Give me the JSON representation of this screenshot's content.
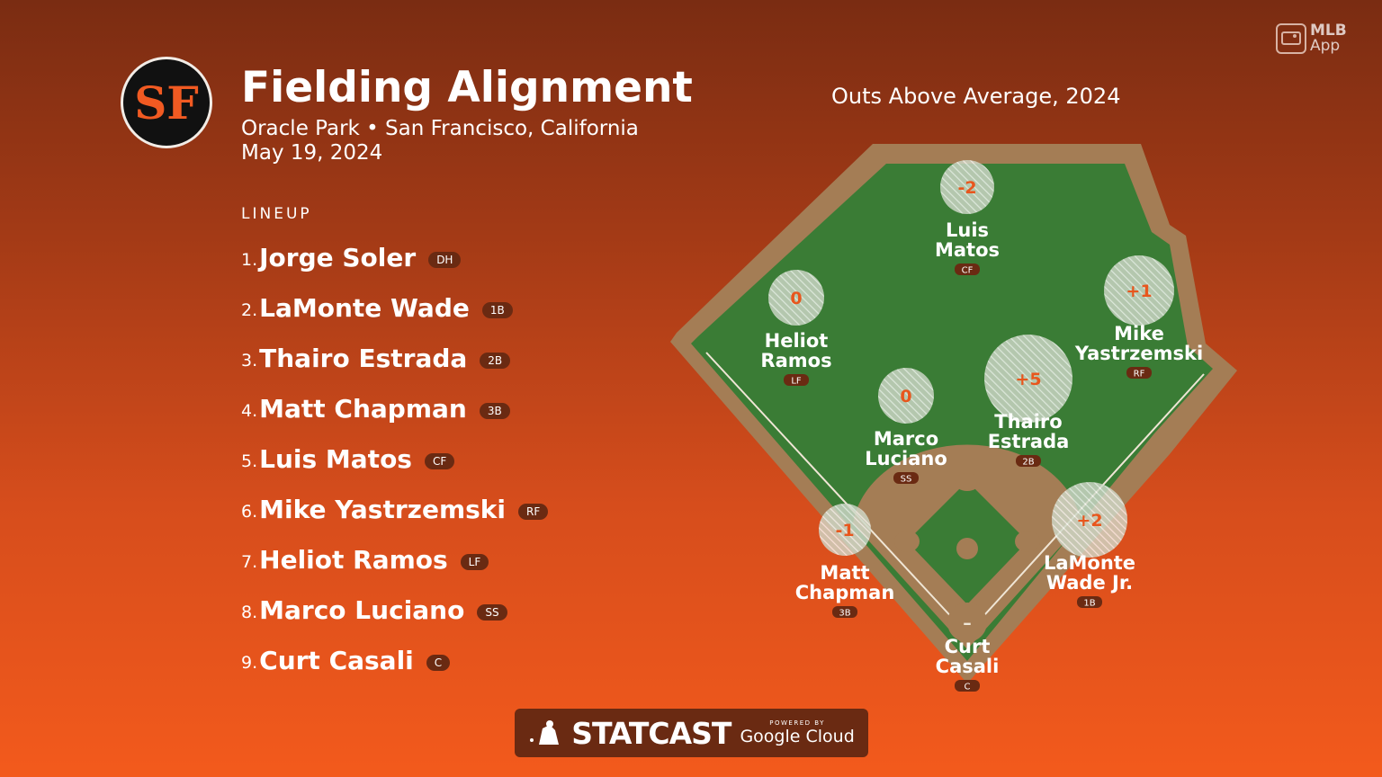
{
  "header": {
    "title": "Fielding Alignment",
    "subtitle": "Oracle Park • San Francisco, California",
    "date": "May 19, 2024",
    "logo_text": "SF"
  },
  "branding": {
    "app_line1": "MLB",
    "app_line2": "App",
    "statcast": "STATCAST",
    "powered_by": "POWERED BY",
    "google_cloud": "Google Cloud"
  },
  "lineup": {
    "heading": "LINEUP",
    "players": [
      {
        "num": "1.",
        "name": "Jorge Soler",
        "pos": "DH"
      },
      {
        "num": "2.",
        "name": "LaMonte Wade",
        "pos": "1B"
      },
      {
        "num": "3.",
        "name": "Thairo Estrada",
        "pos": "2B"
      },
      {
        "num": "4.",
        "name": "Matt Chapman",
        "pos": "3B"
      },
      {
        "num": "5.",
        "name": "Luis Matos",
        "pos": "CF"
      },
      {
        "num": "6.",
        "name": "Mike Yastrzemski",
        "pos": "RF"
      },
      {
        "num": "7.",
        "name": "Heliot Ramos",
        "pos": "LF"
      },
      {
        "num": "8.",
        "name": "Marco Luciano",
        "pos": "SS"
      },
      {
        "num": "9.",
        "name": "Curt Casali",
        "pos": "C"
      }
    ]
  },
  "field": {
    "title": "Outs Above Average, 2024",
    "fielders": [
      {
        "first": "Luis",
        "last": "Matos",
        "pos": "CF",
        "oaa": "-2"
      },
      {
        "first": "Heliot",
        "last": "Ramos",
        "pos": "LF",
        "oaa": "0"
      },
      {
        "first": "Mike",
        "last": "Yastrzemski",
        "pos": "RF",
        "oaa": "+1"
      },
      {
        "first": "Marco",
        "last": "Luciano",
        "pos": "SS",
        "oaa": "0"
      },
      {
        "first": "Thairo",
        "last": "Estrada",
        "pos": "2B",
        "oaa": "+5"
      },
      {
        "first": "Matt",
        "last": "Chapman",
        "pos": "3B",
        "oaa": "-1"
      },
      {
        "first": "LaMonte",
        "last": "Wade Jr.",
        "pos": "1B",
        "oaa": "+2"
      },
      {
        "first": "Curt",
        "last": "Casali",
        "pos": "C",
        "oaa": "–"
      }
    ]
  },
  "colors": {
    "grass": "#3a7c35",
    "dirt": "#a47d55",
    "oaa_text": "#e8561d",
    "badge": "#6a2a12"
  }
}
